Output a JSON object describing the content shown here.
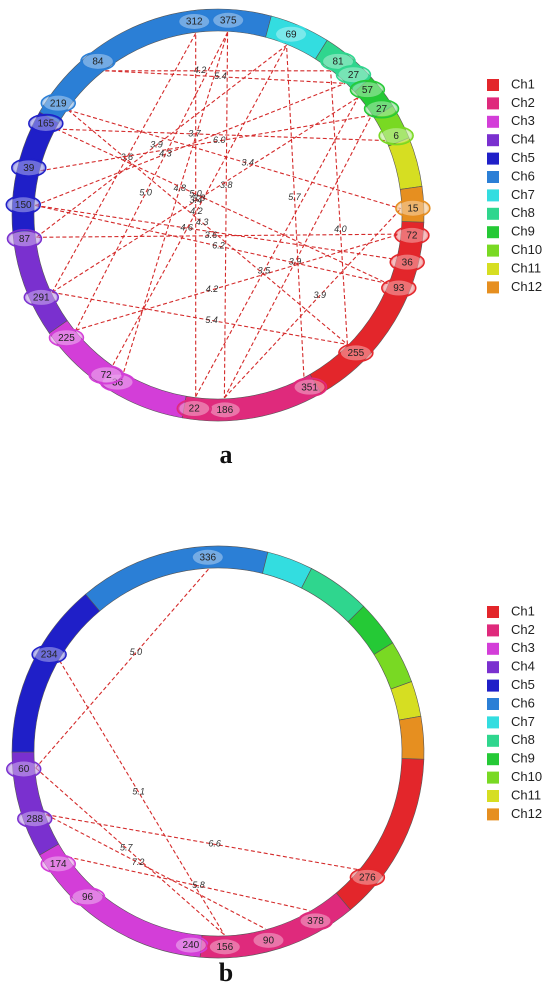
{
  "legend": {
    "items": [
      {
        "name": "Ch1",
        "color": "#e3262b"
      },
      {
        "name": "Ch2",
        "color": "#df2a7c"
      },
      {
        "name": "Ch3",
        "color": "#d33ed8"
      },
      {
        "name": "Ch4",
        "color": "#7a30cf"
      },
      {
        "name": "Ch5",
        "color": "#1f1fc8"
      },
      {
        "name": "Ch6",
        "color": "#2b7fd6"
      },
      {
        "name": "Ch7",
        "color": "#33dde0"
      },
      {
        "name": "Ch8",
        "color": "#2fd68e"
      },
      {
        "name": "Ch9",
        "color": "#25c936"
      },
      {
        "name": "Ch10",
        "color": "#79d923"
      },
      {
        "name": "Ch11",
        "color": "#d6de22"
      },
      {
        "name": "Ch12",
        "color": "#e68f20"
      }
    ]
  },
  "panels": [
    {
      "letter": "a",
      "nodes": [
        "312",
        "375",
        "69",
        "81",
        "27",
        "57",
        "27",
        "6",
        "15",
        "72",
        "36",
        "93",
        "255",
        "351",
        "186",
        "22",
        "36",
        "72",
        "225",
        "291",
        "87",
        "150",
        "39",
        "165",
        "219",
        "84"
      ],
      "links": [
        {
          "from": 25,
          "to": 3,
          "label": "4.2"
        },
        {
          "from": 25,
          "to": 4,
          "label": "5.4"
        },
        {
          "from": 1,
          "to": 18,
          "label": "5.0"
        },
        {
          "from": 1,
          "to": 14,
          "label": "3.8"
        },
        {
          "from": 0,
          "to": 19,
          "label": "3.6"
        },
        {
          "from": 24,
          "to": 8,
          "label": "3.4"
        },
        {
          "from": 23,
          "to": 7,
          "label": "3.7"
        },
        {
          "from": 24,
          "to": 12,
          "label": "4.3"
        },
        {
          "from": 22,
          "to": 6,
          "label": "6.0"
        },
        {
          "from": 21,
          "to": 10,
          "label": "4.6"
        },
        {
          "from": 20,
          "to": 2,
          "label": "3.9"
        },
        {
          "from": 19,
          "to": 12,
          "label": "5.4"
        },
        {
          "from": 18,
          "to": 9,
          "label": "4.2"
        },
        {
          "from": 17,
          "to": 2,
          "label": "4.2"
        },
        {
          "from": 16,
          "to": 1,
          "label": "4.8"
        },
        {
          "from": 15,
          "to": 5,
          "label": "3.5"
        },
        {
          "from": 14,
          "to": 6,
          "label": "3.9"
        },
        {
          "from": 13,
          "to": 2,
          "label": "5.7"
        },
        {
          "from": 12,
          "to": 3,
          "label": "4.0"
        },
        {
          "from": 11,
          "to": 21,
          "label": "6.2"
        },
        {
          "from": 15,
          "to": 0,
          "label": "3.4"
        },
        {
          "from": 23,
          "to": 11,
          "label": "5.0"
        },
        {
          "from": 19,
          "to": 5,
          "label": "3.8"
        },
        {
          "from": 14,
          "to": 8,
          "label": "3.9"
        },
        {
          "from": 21,
          "to": 4,
          "label": "4.3"
        },
        {
          "from": 20,
          "to": 9,
          "label": "3.6"
        }
      ]
    },
    {
      "letter": "b",
      "nodes": [
        "336",
        "234",
        "60",
        "288",
        "174",
        "96",
        "240",
        "156",
        "90",
        "378",
        "276"
      ],
      "links": [
        {
          "from": 0,
          "to": 2,
          "label": "5.0"
        },
        {
          "from": 1,
          "to": 7,
          "label": "5.1"
        },
        {
          "from": 3,
          "to": 10,
          "label": "6.6"
        },
        {
          "from": 3,
          "to": 8,
          "label": "7.2"
        },
        {
          "from": 2,
          "to": 7,
          "label": "5.7"
        },
        {
          "from": 4,
          "to": 9,
          "label": "5.8"
        }
      ]
    }
  ]
}
